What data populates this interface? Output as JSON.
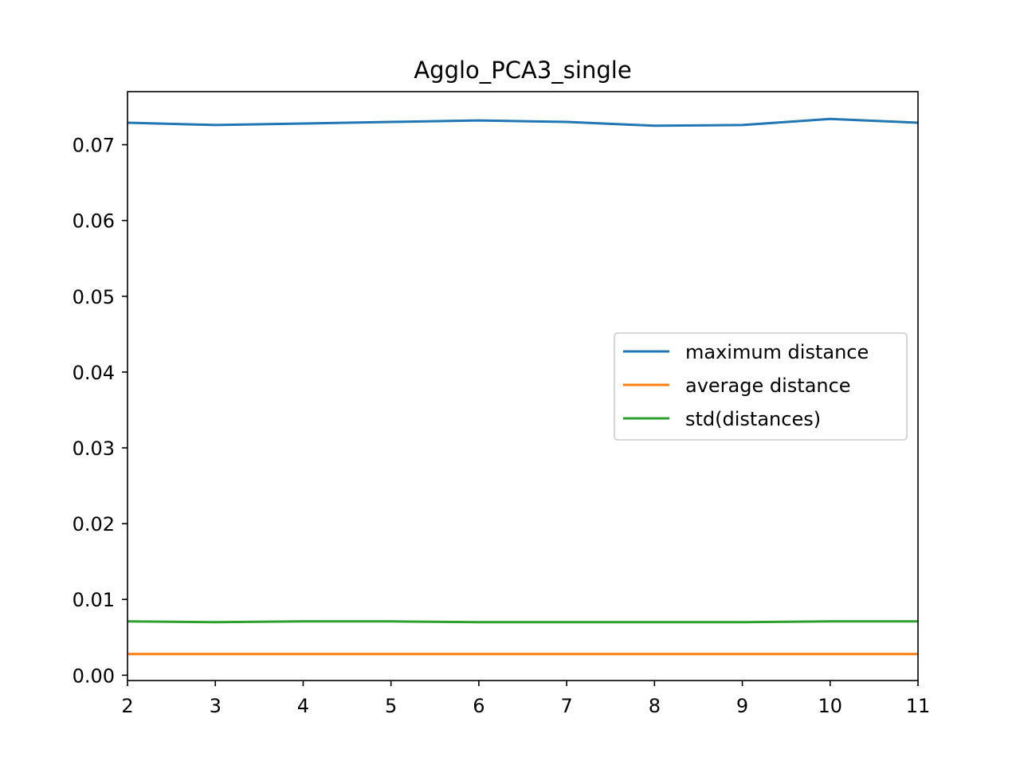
{
  "chart_data": {
    "type": "line",
    "title": "Agglo_PCA3_single",
    "xlabel": "",
    "ylabel": "",
    "x": [
      2,
      3,
      4,
      5,
      6,
      7,
      8,
      9,
      10,
      11
    ],
    "xlim": [
      2,
      11
    ],
    "ylim": [
      -0.0007,
      0.077
    ],
    "xticks": [
      "2",
      "3",
      "4",
      "5",
      "6",
      "7",
      "8",
      "9",
      "10",
      "11"
    ],
    "yticks": [
      {
        "value": 0.0,
        "label": "0.00"
      },
      {
        "value": 0.01,
        "label": "0.01"
      },
      {
        "value": 0.02,
        "label": "0.02"
      },
      {
        "value": 0.03,
        "label": "0.03"
      },
      {
        "value": 0.04,
        "label": "0.04"
      },
      {
        "value": 0.05,
        "label": "0.05"
      },
      {
        "value": 0.06,
        "label": "0.06"
      },
      {
        "value": 0.07,
        "label": "0.07"
      }
    ],
    "grid": false,
    "legend_position": "center-right",
    "series": [
      {
        "name": "maximum distance",
        "color": "#1f77b4",
        "values": [
          0.0729,
          0.0726,
          0.0728,
          0.073,
          0.0732,
          0.073,
          0.0725,
          0.0726,
          0.0734,
          0.0729
        ]
      },
      {
        "name": "average distance",
        "color": "#ff7f0e",
        "values": [
          0.0028,
          0.0028,
          0.0028,
          0.0028,
          0.0028,
          0.0028,
          0.0028,
          0.0028,
          0.0028,
          0.0028
        ]
      },
      {
        "name": "std(distances)",
        "color": "#2ca02c",
        "values": [
          0.0071,
          0.007,
          0.0071,
          0.0071,
          0.007,
          0.007,
          0.007,
          0.007,
          0.0071,
          0.0071
        ]
      }
    ]
  }
}
